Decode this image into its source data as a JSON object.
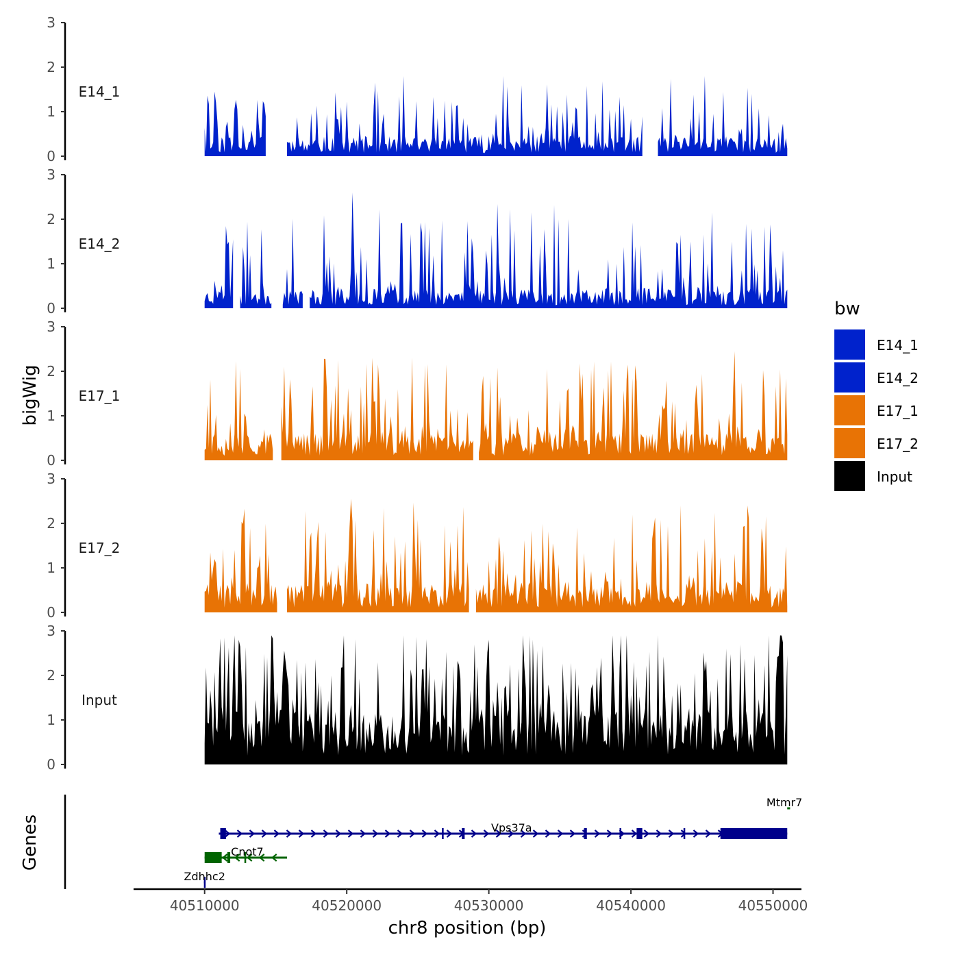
{
  "chart_data": {
    "type": "area",
    "chromosome": "chr8",
    "xlabel": "chr8 position (bp)",
    "ylabel": "bigWig",
    "genes_ylabel": "Genes",
    "xlim": [
      40505000,
      40552000
    ],
    "ylim": [
      0,
      3
    ],
    "data_xlim": [
      40510000,
      40551000
    ],
    "y_ticks": [
      "0",
      "1",
      "2",
      "3"
    ],
    "x_ticks": [
      {
        "value": 40510000,
        "label": "40510000"
      },
      {
        "value": 40520000,
        "label": "40520000"
      },
      {
        "value": 40530000,
        "label": "40530000"
      },
      {
        "value": 40540000,
        "label": "40540000"
      },
      {
        "value": 40550000,
        "label": "40550000"
      }
    ],
    "legend": {
      "title": "bw",
      "entries": [
        {
          "name": "E14_1",
          "color": "#0022cc"
        },
        {
          "name": "E14_2",
          "color": "#0022cc"
        },
        {
          "name": "E17_1",
          "color": "#e87305"
        },
        {
          "name": "E17_2",
          "color": "#e87305"
        },
        {
          "name": "Input",
          "color": "#000000"
        }
      ]
    },
    "series": [
      {
        "name": "E14_1",
        "color": "#0022cc",
        "seed": 11,
        "base": 0.45,
        "peak_max": 1.8,
        "peak_rate": 0.32,
        "gaps": [
          [
            40514400,
            40515700
          ],
          [
            40540900,
            40541800
          ]
        ],
        "peaks": [
          [
            40510700,
            1.45
          ],
          [
            40524000,
            1.8
          ],
          [
            40531000,
            1.8
          ],
          [
            40545200,
            1.8
          ],
          [
            40548500,
            1.4
          ]
        ]
      },
      {
        "name": "E14_2",
        "color": "#0022cc",
        "seed": 23,
        "base": 0.45,
        "peak_max": 2.6,
        "peak_rate": 0.28,
        "gaps": [
          [
            40512100,
            40512400
          ],
          [
            40514800,
            40515400
          ],
          [
            40517000,
            40517300
          ]
        ],
        "peaks": [
          [
            40520400,
            2.6
          ],
          [
            40523800,
            1.9
          ],
          [
            40525800,
            1.8
          ],
          [
            40544200,
            1.5
          ]
        ]
      },
      {
        "name": "E17_1",
        "color": "#e87305",
        "seed": 37,
        "base": 0.65,
        "peak_max": 2.45,
        "peak_rate": 0.3,
        "gaps": [
          [
            40514900,
            40515300
          ],
          [
            40529000,
            40529200
          ]
        ],
        "peaks": [
          [
            40512500,
            2.05
          ],
          [
            40519400,
            2.25
          ],
          [
            40521800,
            2.3
          ],
          [
            40547300,
            2.45
          ]
        ]
      },
      {
        "name": "E17_2",
        "color": "#e87305",
        "seed": 53,
        "base": 0.7,
        "peak_max": 2.55,
        "peak_rate": 0.3,
        "gaps": [
          [
            40515200,
            40515700
          ],
          [
            40528700,
            40529000
          ]
        ],
        "peaks": [
          [
            40520300,
            2.55
          ],
          [
            40527800,
            1.95
          ],
          [
            40548300,
            2.1
          ]
        ]
      },
      {
        "name": "Input",
        "color": "#000000",
        "seed": 71,
        "base": 1.25,
        "peak_max": 2.9,
        "peak_rate": 0.42,
        "gaps": [],
        "peaks": [
          [
            40511400,
            2.85
          ],
          [
            40512400,
            2.8
          ],
          [
            40530000,
            2.8
          ],
          [
            40539700,
            2.9
          ],
          [
            40546700,
            2.6
          ]
        ]
      }
    ],
    "genes": [
      {
        "name": "Vps37a",
        "color": "#00008b",
        "start": 40511000,
        "end": 40551000,
        "strand": "+",
        "row": 1,
        "exons": [
          [
            40511100,
            40511500
          ],
          [
            40526700,
            40526800
          ],
          [
            40528100,
            40528300
          ],
          [
            40536700,
            40536900
          ],
          [
            40539200,
            40539300
          ],
          [
            40540400,
            40540800
          ],
          [
            40543700,
            40543800
          ],
          [
            40546300,
            40551000
          ]
        ],
        "label_pos": 40531600
      },
      {
        "name": "Cnot7",
        "color": "#006400",
        "start": 40510000,
        "end": 40515800,
        "strand": "-",
        "row": 2,
        "exons": [
          [
            40510000,
            40511200
          ],
          [
            40511600,
            40511800
          ],
          [
            40512800,
            40512900
          ]
        ],
        "label_pos": 40513000
      },
      {
        "name": "Zdhhc2",
        "color": "#00008b",
        "start": 40509950,
        "end": 40510050,
        "strand": "+",
        "row": 3,
        "exons": [
          [
            40509950,
            40510050
          ]
        ],
        "label_pos": 40510000
      },
      {
        "name": "Mtmr7",
        "color": "#006400",
        "start": 40551000,
        "end": 40551200,
        "strand": "-",
        "row": 0,
        "exons": [],
        "label_pos": 40550800
      }
    ]
  }
}
